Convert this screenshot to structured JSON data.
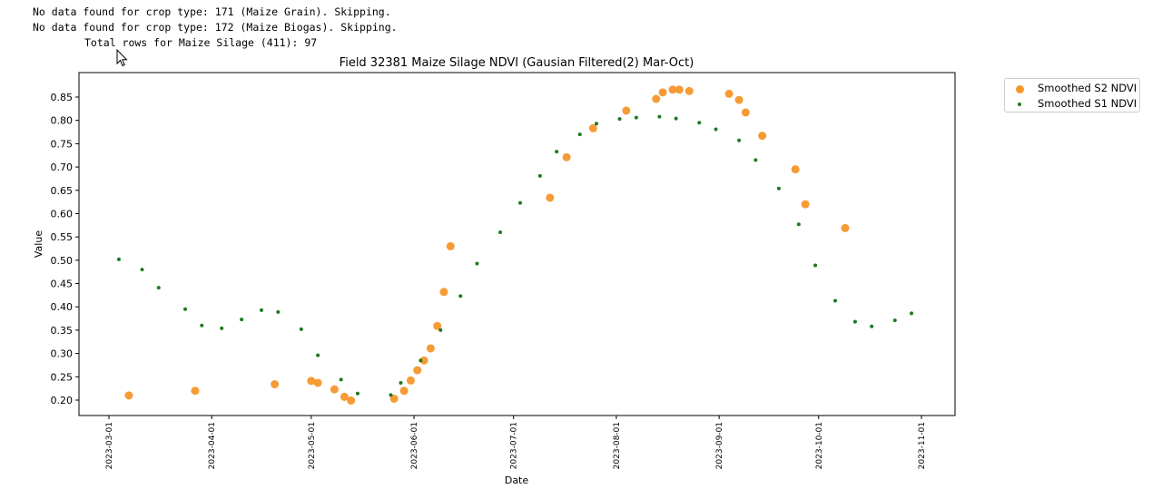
{
  "log": {
    "line1": "No data found for crop type: 171 (Maize Grain). Skipping.",
    "line2": "No data found for crop type: 172 (Maize Biogas). Skipping.",
    "line3": "Total rows for Maize Silage (411): 97"
  },
  "chart_data": {
    "type": "scatter",
    "title": "Field 32381 Maize Silage NDVI (Gausian Filtered(2) Mar-Oct)",
    "xlabel": "Date",
    "ylabel": "Value",
    "x_ticks": [
      "2023-03-01",
      "2023-04-01",
      "2023-05-01",
      "2023-06-01",
      "2023-07-01",
      "2023-08-01",
      "2023-09-01",
      "2023-10-01",
      "2023-11-01"
    ],
    "y_ticks": [
      "0.20",
      "0.25",
      "0.30",
      "0.35",
      "0.40",
      "0.45",
      "0.50",
      "0.55",
      "0.60",
      "0.65",
      "0.70",
      "0.75",
      "0.80",
      "0.85"
    ],
    "xlim": [
      "2022-02-21",
      "2023-11-11"
    ],
    "ylim": [
      0.168,
      0.875
    ],
    "grid": false,
    "legend_position": "outside-top-right",
    "series": [
      {
        "name": "Smoothed S2 NDVI",
        "color": "#f5962a",
        "marker": "large-circle",
        "points": [
          [
            "2023-03-07",
            0.21
          ],
          [
            "2023-03-27",
            0.22
          ],
          [
            "2023-04-20",
            0.234
          ],
          [
            "2023-05-01",
            0.241
          ],
          [
            "2023-05-03",
            0.237
          ],
          [
            "2023-05-08",
            0.223
          ],
          [
            "2023-05-11",
            0.207
          ],
          [
            "2023-05-13",
            0.199
          ],
          [
            "2023-05-26",
            0.203
          ],
          [
            "2023-05-29",
            0.22
          ],
          [
            "2023-05-31",
            0.242
          ],
          [
            "2023-06-02",
            0.264
          ],
          [
            "2023-06-04",
            0.285
          ],
          [
            "2023-06-06",
            0.311
          ],
          [
            "2023-06-08",
            0.359
          ],
          [
            "2023-06-10",
            0.432
          ],
          [
            "2023-06-12",
            0.53
          ],
          [
            "2023-07-12",
            0.634
          ],
          [
            "2023-07-17",
            0.721
          ],
          [
            "2023-07-25",
            0.783
          ],
          [
            "2023-08-04",
            0.821
          ],
          [
            "2023-08-13",
            0.846
          ],
          [
            "2023-08-15",
            0.86
          ],
          [
            "2023-08-18",
            0.866
          ],
          [
            "2023-08-20",
            0.866
          ],
          [
            "2023-08-23",
            0.863
          ],
          [
            "2023-09-04",
            0.857
          ],
          [
            "2023-09-07",
            0.844
          ],
          [
            "2023-09-09",
            0.817
          ],
          [
            "2023-09-14",
            0.767
          ],
          [
            "2023-09-24",
            0.695
          ],
          [
            "2023-09-27",
            0.62
          ],
          [
            "2023-10-09",
            0.569
          ]
        ]
      },
      {
        "name": "Smoothed S1 NDVI",
        "color": "#1f7a1f",
        "marker": "small-dot",
        "points": [
          [
            "2023-03-04",
            0.502
          ],
          [
            "2023-03-11",
            0.48
          ],
          [
            "2023-03-16",
            0.441
          ],
          [
            "2023-03-24",
            0.395
          ],
          [
            "2023-03-29",
            0.36
          ],
          [
            "2023-04-04",
            0.354
          ],
          [
            "2023-04-10",
            0.373
          ],
          [
            "2023-04-16",
            0.393
          ],
          [
            "2023-04-21",
            0.389
          ],
          [
            "2023-04-28",
            0.352
          ],
          [
            "2023-05-03",
            0.296
          ],
          [
            "2023-05-10",
            0.244
          ],
          [
            "2023-05-15",
            0.214
          ],
          [
            "2023-05-25",
            0.211
          ],
          [
            "2023-05-28",
            0.237
          ],
          [
            "2023-06-03",
            0.285
          ],
          [
            "2023-06-09",
            0.35
          ],
          [
            "2023-06-15",
            0.423
          ],
          [
            "2023-06-20",
            0.493
          ],
          [
            "2023-06-27",
            0.56
          ],
          [
            "2023-07-03",
            0.623
          ],
          [
            "2023-07-09",
            0.681
          ],
          [
            "2023-07-14",
            0.733
          ],
          [
            "2023-07-21",
            0.77
          ],
          [
            "2023-07-26",
            0.793
          ],
          [
            "2023-08-02",
            0.803
          ],
          [
            "2023-08-07",
            0.806
          ],
          [
            "2023-08-14",
            0.808
          ],
          [
            "2023-08-19",
            0.804
          ],
          [
            "2023-08-26",
            0.795
          ],
          [
            "2023-08-31",
            0.781
          ],
          [
            "2023-09-07",
            0.757
          ],
          [
            "2023-09-12",
            0.715
          ],
          [
            "2023-09-19",
            0.654
          ],
          [
            "2023-09-25",
            0.577
          ],
          [
            "2023-09-30",
            0.489
          ],
          [
            "2023-10-06",
            0.413
          ],
          [
            "2023-10-12",
            0.368
          ],
          [
            "2023-10-17",
            0.358
          ],
          [
            "2023-10-24",
            0.371
          ],
          [
            "2023-10-29",
            0.386
          ]
        ]
      }
    ]
  }
}
